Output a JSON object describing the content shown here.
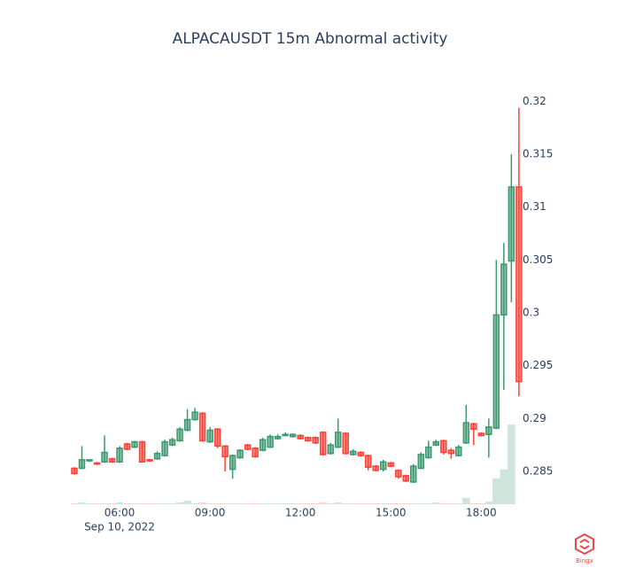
{
  "chart_data": {
    "type": "candlestick",
    "title": "ALPACAUSDT   15m Abnormal activity",
    "x": [
      "04:30",
      "04:45",
      "05:00",
      "05:15",
      "05:30",
      "05:45",
      "06:00",
      "06:15",
      "06:30",
      "06:45",
      "07:00",
      "07:15",
      "07:30",
      "07:45",
      "08:00",
      "08:15",
      "08:30",
      "08:45",
      "09:00",
      "09:15",
      "09:30",
      "09:45",
      "10:00",
      "10:15",
      "10:30",
      "10:45",
      "11:00",
      "11:15",
      "11:30",
      "11:45",
      "12:00",
      "12:15",
      "12:30",
      "12:45",
      "13:00",
      "13:15",
      "13:30",
      "13:45",
      "14:00",
      "14:15",
      "14:30",
      "14:45",
      "15:00",
      "15:15",
      "15:30",
      "15:45",
      "16:00",
      "16:15",
      "16:30",
      "16:45",
      "17:00",
      "17:15",
      "17:30",
      "17:45",
      "18:00",
      "18:15",
      "18:30",
      "18:45",
      "19:00",
      "19:15"
    ],
    "open": [
      0.2853,
      0.2853,
      0.286,
      0.2858,
      0.2859,
      0.2862,
      0.2859,
      0.2876,
      0.2873,
      0.2878,
      0.2861,
      0.2862,
      0.2865,
      0.2875,
      0.2879,
      0.2889,
      0.2899,
      0.2905,
      0.2878,
      0.289,
      0.2874,
      0.2852,
      0.2863,
      0.2875,
      0.2872,
      0.287,
      0.2873,
      0.2881,
      0.2884,
      0.2883,
      0.2884,
      0.2882,
      0.2882,
      0.2887,
      0.2867,
      0.2873,
      0.2886,
      0.2866,
      0.2868,
      0.2865,
      0.2855,
      0.2852,
      0.2858,
      0.2851,
      0.2846,
      0.284,
      0.2853,
      0.2863,
      0.2875,
      0.2879,
      0.287,
      0.2865,
      0.2877,
      0.2895,
      0.2886,
      0.2885,
      0.2891,
      0.2998,
      0.3049,
      0.3119
    ],
    "high": [
      0.2854,
      0.2874,
      0.2861,
      0.2859,
      0.2884,
      0.2863,
      0.2874,
      0.2877,
      0.2879,
      0.2879,
      0.2862,
      0.2869,
      0.288,
      0.2882,
      0.2892,
      0.2909,
      0.291,
      0.2906,
      0.2892,
      0.2891,
      0.2875,
      0.2866,
      0.2871,
      0.2876,
      0.2873,
      0.2882,
      0.2885,
      0.2885,
      0.2887,
      0.2886,
      0.2885,
      0.2883,
      0.2883,
      0.2888,
      0.2877,
      0.29,
      0.2887,
      0.2871,
      0.2869,
      0.2866,
      0.2856,
      0.2861,
      0.2859,
      0.2852,
      0.2847,
      0.2857,
      0.2868,
      0.2879,
      0.288,
      0.288,
      0.2872,
      0.2875,
      0.2913,
      0.2896,
      0.2887,
      0.29,
      0.305,
      0.3066,
      0.315,
      0.3194
    ],
    "low": [
      0.2847,
      0.2852,
      0.2859,
      0.2856,
      0.2858,
      0.2858,
      0.2858,
      0.287,
      0.2872,
      0.2859,
      0.2859,
      0.2861,
      0.2864,
      0.2874,
      0.2878,
      0.2888,
      0.2898,
      0.2878,
      0.2877,
      0.2872,
      0.285,
      0.2843,
      0.2862,
      0.287,
      0.2863,
      0.2869,
      0.2872,
      0.288,
      0.2883,
      0.2882,
      0.288,
      0.2878,
      0.2876,
      0.2865,
      0.2866,
      0.2872,
      0.2866,
      0.2865,
      0.2864,
      0.2851,
      0.285,
      0.285,
      0.2854,
      0.2843,
      0.284,
      0.2839,
      0.2852,
      0.2862,
      0.2874,
      0.2866,
      0.2862,
      0.2864,
      0.2876,
      0.2875,
      0.2883,
      0.2863,
      0.289,
      0.2927,
      0.301,
      0.2921
    ],
    "close": [
      0.2848,
      0.2861,
      0.2861,
      0.2857,
      0.2868,
      0.2859,
      0.2872,
      0.2871,
      0.2878,
      0.2859,
      0.286,
      0.2867,
      0.2878,
      0.288,
      0.289,
      0.2899,
      0.2906,
      0.2879,
      0.2889,
      0.2874,
      0.2864,
      0.2865,
      0.287,
      0.2871,
      0.2864,
      0.288,
      0.2883,
      0.2883,
      0.2885,
      0.2885,
      0.2881,
      0.2879,
      0.2877,
      0.2866,
      0.2875,
      0.2887,
      0.2867,
      0.2869,
      0.2865,
      0.2854,
      0.2851,
      0.2859,
      0.2855,
      0.2845,
      0.2841,
      0.2855,
      0.2866,
      0.2873,
      0.2878,
      0.2868,
      0.2867,
      0.2873,
      0.2896,
      0.289,
      0.2884,
      0.2892,
      0.2998,
      0.3046,
      0.3119,
      0.2935
    ],
    "volume": [
      1,
      2,
      1,
      1,
      1,
      1,
      2,
      1,
      1,
      1,
      1,
      1,
      1,
      1,
      2,
      4,
      1,
      2,
      1,
      1,
      1,
      1,
      1,
      1,
      1,
      1,
      1,
      1,
      1,
      1,
      1,
      1,
      1,
      2,
      1,
      2,
      1,
      1,
      1,
      1,
      1,
      1,
      1,
      1,
      1,
      1,
      1,
      1,
      2,
      1,
      1,
      1,
      7,
      1,
      1,
      3,
      29,
      39,
      89,
      0
    ],
    "volume_ylim": [
      0,
      464
    ],
    "increasing_color": "#3d9970",
    "decreasing_color": "#ff4136",
    "xlim": [
      "04:23",
      "19:17"
    ],
    "xticks": [
      "06:00",
      "09:00",
      "12:00",
      "15:00",
      "18:00"
    ],
    "x_date_label": "Sep 10, 2022",
    "ylim": [
      0.2819,
      0.3212
    ],
    "yticks": [
      0.285,
      0.29,
      0.295,
      0.3,
      0.305,
      0.31,
      0.315,
      0.32
    ],
    "grid": false
  },
  "logo_text": "Bingx"
}
